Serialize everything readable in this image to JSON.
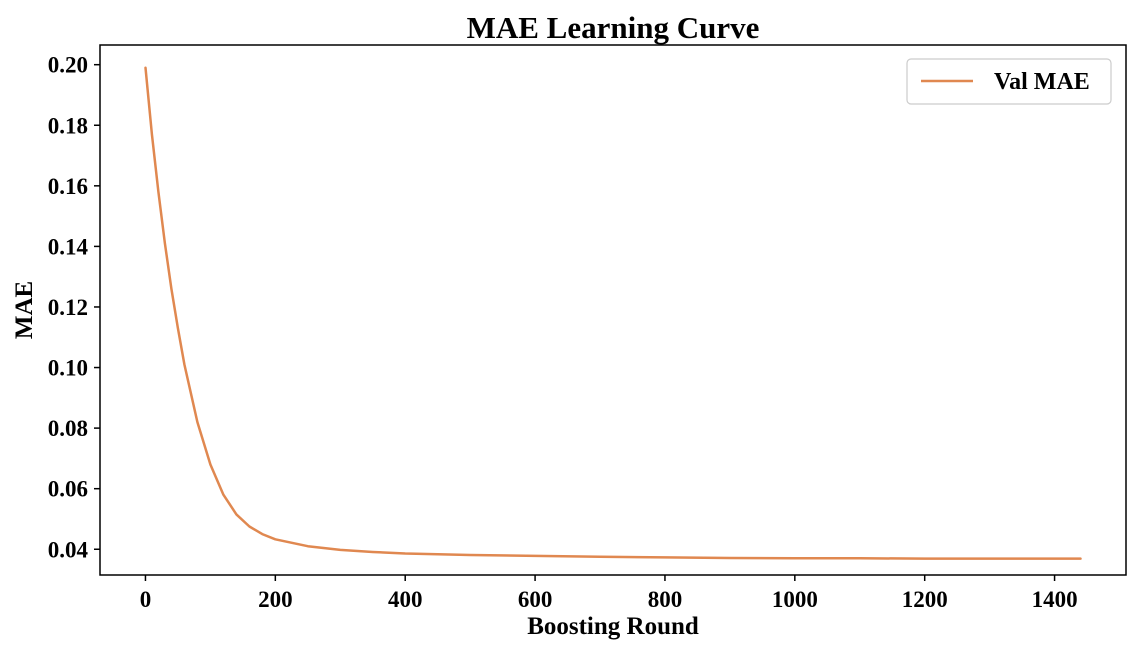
{
  "chart_data": {
    "type": "line",
    "title": "MAE Learning Curve",
    "xlabel": "Boosting Round",
    "ylabel": "MAE",
    "xlim": [
      -70,
      1510
    ],
    "ylim": [
      0.0315,
      0.2065
    ],
    "xticks": [
      0,
      200,
      400,
      600,
      800,
      1000,
      1200,
      1400
    ],
    "xtick_labels": [
      "0",
      "200",
      "400",
      "600",
      "800",
      "1000",
      "1200",
      "1400"
    ],
    "yticks": [
      0.04,
      0.06,
      0.08,
      0.1,
      0.12,
      0.14,
      0.16,
      0.18,
      0.2
    ],
    "ytick_labels": [
      "0.04",
      "0.06",
      "0.08",
      "0.10",
      "0.12",
      "0.14",
      "0.16",
      "0.18",
      "0.20"
    ],
    "grid": false,
    "legend_position": "top-right",
    "series": [
      {
        "name": "Val MAE",
        "color": "#e08850",
        "x": [
          0,
          10,
          20,
          30,
          40,
          50,
          60,
          80,
          100,
          120,
          140,
          160,
          180,
          200,
          250,
          300,
          350,
          400,
          500,
          600,
          700,
          800,
          900,
          1000,
          1100,
          1200,
          1300,
          1400,
          1440
        ],
        "y": [
          0.199,
          0.177,
          0.158,
          0.141,
          0.126,
          0.113,
          0.101,
          0.082,
          0.068,
          0.058,
          0.0515,
          0.0475,
          0.045,
          0.0433,
          0.041,
          0.0398,
          0.0391,
          0.0386,
          0.0381,
          0.0378,
          0.0375,
          0.0373,
          0.0371,
          0.037,
          0.037,
          0.0369,
          0.0369,
          0.0369,
          0.0369
        ]
      }
    ]
  }
}
